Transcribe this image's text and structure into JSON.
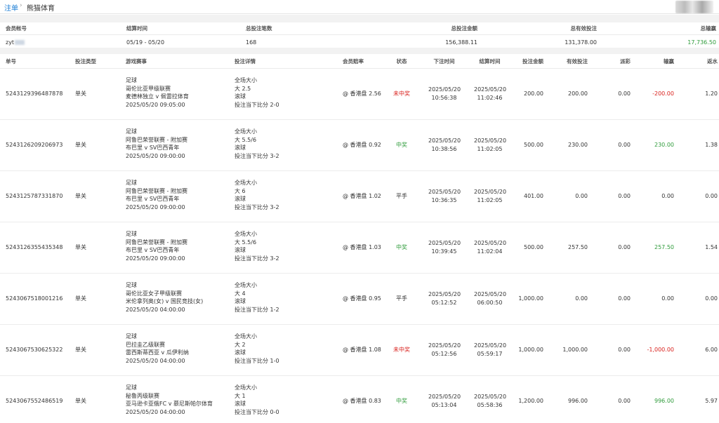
{
  "breadcrumb": {
    "root": "注单",
    "separator": "›",
    "current": "熊猫体育"
  },
  "summary": {
    "headers": [
      "会员帐号",
      "结算时间",
      "总投注笔数",
      "总投注金额",
      "总有效投注",
      "总输赢"
    ],
    "account": "zyt",
    "settle_range": "05/19 - 05/20",
    "bet_count": "168",
    "total_bet": "156,388.11",
    "total_valid": "131,378.00",
    "total_win_loss": "17,736.50"
  },
  "columns": [
    "单号",
    "投注类型",
    "游戏赛事",
    "投注详情",
    "会员赔率",
    "状态",
    "下注时间",
    "结算时间",
    "投注金额",
    "有效投注",
    "派彩",
    "输赢",
    "返水"
  ],
  "rows": [
    {
      "id": "5243129396487878",
      "type": "单关",
      "sport": "足球",
      "league": "哥伦比亚甲级联赛",
      "match": "麦德林独立 v 佩雷拉体育",
      "match_time": "2025/05/20 09:05:00",
      "bet_kind": "全场大小",
      "bet_pick": "大 2.5",
      "bet_live": "滚球",
      "bet_score": "投注当下比分 2-0",
      "odds": "@ 香港盘 2.56",
      "status": "未中奖",
      "status_color": "#d9211d",
      "bet_date": "2025/05/20",
      "bet_clock": "10:56:38",
      "settle_date": "2025/05/20",
      "settle_clock": "11:02:46",
      "amount": "200.00",
      "valid": "200.00",
      "payout": "0.00",
      "win_loss": "-200.00",
      "win_color": "#d9211d",
      "rebate": "1.20"
    },
    {
      "id": "5243126209206973",
      "type": "单关",
      "sport": "足球",
      "league": "阿鲁巴荣誉联赛 - 附加赛",
      "match": "布巴里 v SV巴西青年",
      "match_time": "2025/05/20 09:00:00",
      "bet_kind": "全场大小",
      "bet_pick": "大 5.5/6",
      "bet_live": "滚球",
      "bet_score": "投注当下比分 3-2",
      "odds": "@ 香港盘 0.92",
      "status": "中奖",
      "status_color": "#2e9b3a",
      "bet_date": "2025/05/20",
      "bet_clock": "10:38:56",
      "settle_date": "2025/05/20",
      "settle_clock": "11:02:05",
      "amount": "500.00",
      "valid": "230.00",
      "payout": "0.00",
      "win_loss": "230.00",
      "win_color": "#2e9b3a",
      "rebate": "1.38"
    },
    {
      "id": "5243125787331870",
      "type": "单关",
      "sport": "足球",
      "league": "阿鲁巴荣誉联赛 - 附加赛",
      "match": "布巴里 v SV巴西青年",
      "match_time": "2025/05/20 09:00:00",
      "bet_kind": "全场大小",
      "bet_pick": "大 6",
      "bet_live": "滚球",
      "bet_score": "投注当下比分 3-2",
      "odds": "@ 香港盘 1.02",
      "status": "平手",
      "status_color": "#333333",
      "bet_date": "2025/05/20",
      "bet_clock": "10:36:35",
      "settle_date": "2025/05/20",
      "settle_clock": "11:02:05",
      "amount": "401.00",
      "valid": "0.00",
      "payout": "0.00",
      "win_loss": "0.00",
      "win_color": "#333333",
      "rebate": "0.00"
    },
    {
      "id": "5243126355435348",
      "type": "单关",
      "sport": "足球",
      "league": "阿鲁巴荣誉联赛 - 附加赛",
      "match": "布巴里 v SV巴西青年",
      "match_time": "2025/05/20 09:00:00",
      "bet_kind": "全场大小",
      "bet_pick": "大 5.5/6",
      "bet_live": "滚球",
      "bet_score": "投注当下比分 3-2",
      "odds": "@ 香港盘 1.03",
      "status": "中奖",
      "status_color": "#2e9b3a",
      "bet_date": "2025/05/20",
      "bet_clock": "10:39:45",
      "settle_date": "2025/05/20",
      "settle_clock": "11:02:04",
      "amount": "500.00",
      "valid": "257.50",
      "payout": "0.00",
      "win_loss": "257.50",
      "win_color": "#2e9b3a",
      "rebate": "1.54"
    },
    {
      "id": "5243067518001216",
      "type": "单关",
      "sport": "足球",
      "league": "哥伦比亚女子甲级联赛",
      "match": "米伦拿列奥(女) v 国民竞技(女)",
      "match_time": "2025/05/20 04:00:00",
      "bet_kind": "全场大小",
      "bet_pick": "大 4",
      "bet_live": "滚球",
      "bet_score": "投注当下比分 1-2",
      "odds": "@ 香港盘 0.95",
      "status": "平手",
      "status_color": "#333333",
      "bet_date": "2025/05/20",
      "bet_clock": "05:12:52",
      "settle_date": "2025/05/20",
      "settle_clock": "06:00:50",
      "amount": "1,000.00",
      "valid": "0.00",
      "payout": "0.00",
      "win_loss": "0.00",
      "win_color": "#333333",
      "rebate": "0.00"
    },
    {
      "id": "5243067530625322",
      "type": "单关",
      "sport": "足球",
      "league": "巴拉圭乙级联赛",
      "match": "雷西斯蒂西亚 v 瓜伊利纳",
      "match_time": "2025/05/20 04:00:00",
      "bet_kind": "全场大小",
      "bet_pick": "大 2",
      "bet_live": "滚球",
      "bet_score": "投注当下比分 1-0",
      "odds": "@ 香港盘 1.08",
      "status": "未中奖",
      "status_color": "#d9211d",
      "bet_date": "2025/05/20",
      "bet_clock": "05:12:56",
      "settle_date": "2025/05/20",
      "settle_clock": "05:59:17",
      "amount": "1,000.00",
      "valid": "1,000.00",
      "payout": "0.00",
      "win_loss": "-1,000.00",
      "win_color": "#d9211d",
      "rebate": "6.00"
    },
    {
      "id": "5243067552486519",
      "type": "单关",
      "sport": "足球",
      "league": "秘鲁丙级联赛",
      "match": "亚马逊卡亚俄FC v 慕尼斯帕尔体育",
      "match_time": "2025/05/20 04:00:00",
      "bet_kind": "全场大小",
      "bet_pick": "大 1",
      "bet_live": "滚球",
      "bet_score": "投注当下比分 0-0",
      "odds": "@ 香港盘 0.83",
      "status": "中奖",
      "status_color": "#2e9b3a",
      "bet_date": "2025/05/20",
      "bet_clock": "05:13:04",
      "settle_date": "2025/05/20",
      "settle_clock": "05:58:36",
      "amount": "1,200.00",
      "valid": "996.00",
      "payout": "0.00",
      "win_loss": "996.00",
      "win_color": "#2e9b3a",
      "rebate": "5.97"
    }
  ]
}
